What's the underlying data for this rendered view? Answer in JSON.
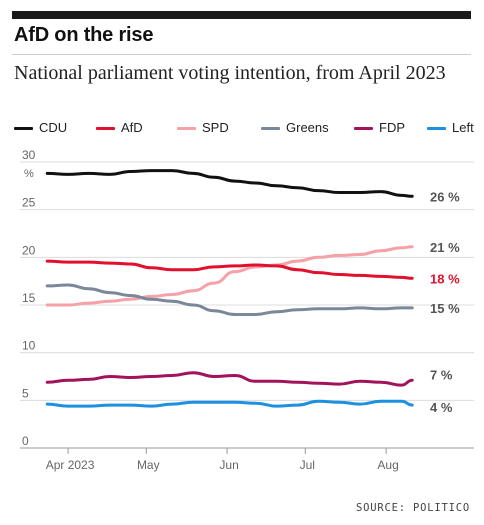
{
  "header": {
    "title": "AfD on the rise",
    "subtitle": "National parliament voting intention, from April 2023"
  },
  "source": "SOURCE: POLITICO",
  "chart_data": {
    "type": "line",
    "title": "AfD on the rise",
    "subtitle": "National parliament voting intention, from April 2023",
    "xlabel": "",
    "ylabel": "%",
    "x_ticks": [
      "Apr 2023",
      "May",
      "Jun",
      "Jul",
      "Aug"
    ],
    "x_tick_dates": [
      "2023-04-01",
      "2023-05-01",
      "2023-06-01",
      "2023-07-01",
      "2023-08-01"
    ],
    "x_range": [
      "2023-03-22",
      "2023-08-14"
    ],
    "y_ticks": [
      0,
      5,
      10,
      15,
      20,
      25,
      30
    ],
    "ylim": [
      0,
      30
    ],
    "grid": "horizontal",
    "legend": "top",
    "x": [
      "2023-03-24",
      "2023-04-01",
      "2023-04-09",
      "2023-04-17",
      "2023-04-25",
      "2023-05-03",
      "2023-05-11",
      "2023-05-19",
      "2023-05-27",
      "2023-06-04",
      "2023-06-12",
      "2023-06-20",
      "2023-06-28",
      "2023-07-06",
      "2023-07-14",
      "2023-07-22",
      "2023-07-30",
      "2023-08-07",
      "2023-08-11"
    ],
    "series": [
      {
        "name": "CDU",
        "color": "#111111",
        "end_label": "26 %",
        "label_color": "#555555",
        "values": [
          28.8,
          28.7,
          28.8,
          28.7,
          29.0,
          29.1,
          29.1,
          28.8,
          28.4,
          28.0,
          27.8,
          27.5,
          27.3,
          27.0,
          26.8,
          26.8,
          26.9,
          26.5,
          26.4
        ]
      },
      {
        "name": "AfD",
        "color": "#e0102f",
        "end_label": "18 %",
        "label_color": "#e0102f",
        "values": [
          19.6,
          19.5,
          19.5,
          19.4,
          19.3,
          18.9,
          18.7,
          18.7,
          19.0,
          19.1,
          19.2,
          19.1,
          18.7,
          18.4,
          18.2,
          18.1,
          18.0,
          17.9,
          17.8
        ]
      },
      {
        "name": "SPD",
        "color": "#f6a0a8",
        "end_label": "21 %",
        "label_color": "#555555",
        "values": [
          15.0,
          15.0,
          15.2,
          15.4,
          15.6,
          15.9,
          16.1,
          16.5,
          17.3,
          18.5,
          19.0,
          19.2,
          19.6,
          20.0,
          20.2,
          20.3,
          20.7,
          21.0,
          21.1
        ]
      },
      {
        "name": "Greens",
        "color": "#7a8899",
        "end_label": "15 %",
        "label_color": "#555555",
        "values": [
          17.0,
          17.1,
          16.7,
          16.3,
          16.0,
          15.6,
          15.4,
          15.0,
          14.4,
          14.0,
          14.0,
          14.3,
          14.5,
          14.6,
          14.6,
          14.7,
          14.6,
          14.7,
          14.7
        ]
      },
      {
        "name": "FDP",
        "color": "#a3135b",
        "end_label": "7 %",
        "label_color": "#555555",
        "values": [
          6.9,
          7.1,
          7.2,
          7.5,
          7.4,
          7.5,
          7.6,
          7.9,
          7.5,
          7.6,
          7.0,
          7.0,
          6.9,
          6.8,
          6.7,
          7.0,
          6.9,
          6.6,
          7.1
        ]
      },
      {
        "name": "Left",
        "color": "#1e90e0",
        "end_label": "4 %",
        "label_color": "#555555",
        "values": [
          4.6,
          4.4,
          4.4,
          4.5,
          4.5,
          4.4,
          4.6,
          4.8,
          4.8,
          4.8,
          4.7,
          4.4,
          4.5,
          4.9,
          4.8,
          4.6,
          4.9,
          4.9,
          4.5
        ]
      }
    ]
  }
}
